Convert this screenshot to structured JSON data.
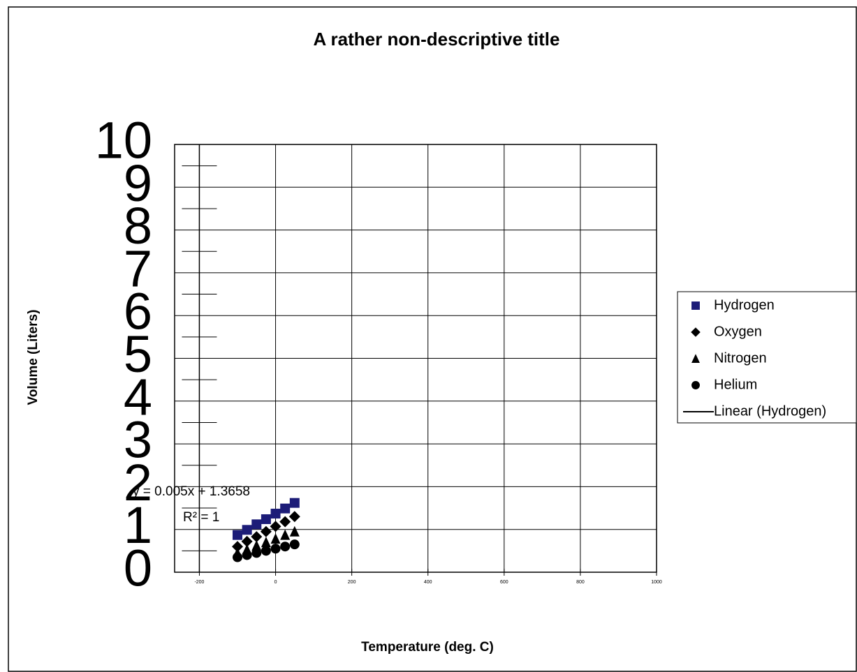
{
  "chart_data": {
    "type": "scatter",
    "title": "A rather non-descriptive title",
    "x_label": "Temperature (deg. C)",
    "y_label": "Volume (Liters)",
    "xlim": [
      -265,
      1000
    ],
    "xticks": [
      -200,
      0,
      200,
      400,
      600,
      800,
      1000
    ],
    "ylim": [
      0,
      10
    ],
    "yticks": [
      0,
      1,
      2,
      3,
      4,
      5,
      6,
      7,
      8,
      9,
      10
    ],
    "grid": true,
    "legend": "right",
    "annotations": [
      "y = 0.005x + 1.3658",
      "R² = 1"
    ],
    "series": [
      {
        "name": "Hydrogen",
        "color": "#1c1c78",
        "marker": "square",
        "x": [
          -100,
          -75,
          -50,
          -25,
          0,
          25,
          50
        ],
        "values": [
          0.87,
          0.99,
          1.12,
          1.24,
          1.37,
          1.49,
          1.62
        ]
      },
      {
        "name": "Oxygen",
        "color": "#000000",
        "marker": "diamond",
        "x": [
          -100,
          -75,
          -50,
          -25,
          0,
          25,
          50
        ],
        "values": [
          0.6,
          0.72,
          0.83,
          0.95,
          1.07,
          1.18,
          1.3
        ]
      },
      {
        "name": "Nitrogen",
        "color": "#000000",
        "marker": "triangle",
        "x": [
          -100,
          -75,
          -50,
          -25,
          0,
          25,
          50
        ],
        "values": [
          0.45,
          0.53,
          0.62,
          0.7,
          0.78,
          0.87,
          0.95
        ]
      },
      {
        "name": "Helium",
        "color": "#000000",
        "marker": "circle",
        "x": [
          -100,
          -75,
          -50,
          -25,
          0,
          25,
          50
        ],
        "values": [
          0.35,
          0.4,
          0.45,
          0.5,
          0.55,
          0.6,
          0.65
        ]
      },
      {
        "name": "Linear (Hydrogen)",
        "color": "#000000",
        "marker": "line",
        "x": [
          -100,
          50
        ],
        "values": [
          0.8658,
          1.6158
        ]
      }
    ]
  }
}
